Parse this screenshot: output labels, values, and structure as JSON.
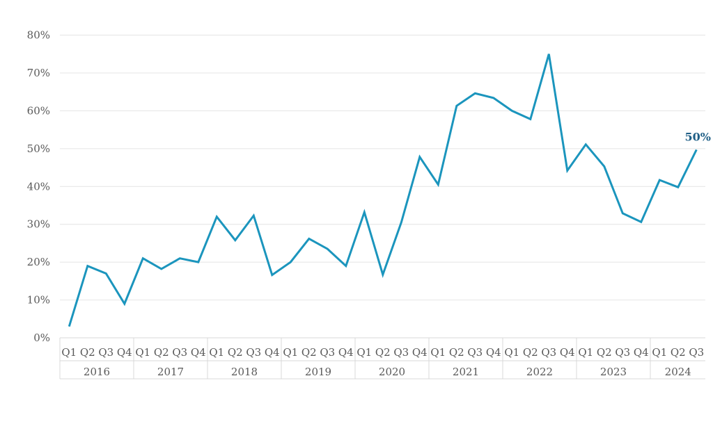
{
  "colors": {
    "line": "#1b95bd",
    "callout": "#1f5f86",
    "grid": "#e4e4e4",
    "axis_text": "#595959"
  },
  "chart_data": {
    "type": "line",
    "title": "",
    "xlabel": "",
    "ylabel": "",
    "ylim": [
      0,
      80
    ],
    "y_ticks": [
      "0%",
      "10%",
      "20%",
      "30%",
      "40%",
      "50%",
      "60%",
      "70%",
      "80%"
    ],
    "y_unit": "%",
    "grid": "horizontal",
    "legend": "none",
    "groups": [
      {
        "year": "2016",
        "quarters": [
          "Q1",
          "Q2",
          "Q3",
          "Q4"
        ]
      },
      {
        "year": "2017",
        "quarters": [
          "Q1",
          "Q2",
          "Q3",
          "Q4"
        ]
      },
      {
        "year": "2018",
        "quarters": [
          "Q1",
          "Q2",
          "Q3",
          "Q4"
        ]
      },
      {
        "year": "2019",
        "quarters": [
          "Q1",
          "Q2",
          "Q3",
          "Q4"
        ]
      },
      {
        "year": "2020",
        "quarters": [
          "Q1",
          "Q2",
          "Q3",
          "Q4"
        ]
      },
      {
        "year": "2021",
        "quarters": [
          "Q1",
          "Q2",
          "Q3",
          "Q4"
        ]
      },
      {
        "year": "2022",
        "quarters": [
          "Q1",
          "Q2",
          "Q3",
          "Q4"
        ]
      },
      {
        "year": "2023",
        "quarters": [
          "Q1",
          "Q2",
          "Q3",
          "Q4"
        ]
      },
      {
        "year": "2024",
        "quarters": [
          "Q1",
          "Q2",
          "Q3"
        ]
      }
    ],
    "series": [
      {
        "values": [
          3,
          19,
          17,
          9,
          21,
          18.2,
          21,
          20,
          32,
          25.8,
          32.3,
          16.6,
          20,
          26.2,
          23.5,
          19,
          33.2,
          16.7,
          30.5,
          47.8,
          40.5,
          61.3,
          64.6,
          63.4,
          60,
          57.8,
          75,
          44.2,
          51.1,
          45.3,
          32.9,
          30.6,
          41.7,
          39.8,
          49.7
        ]
      }
    ],
    "annotations": [
      {
        "label": "50%",
        "point_index": 34
      }
    ]
  }
}
